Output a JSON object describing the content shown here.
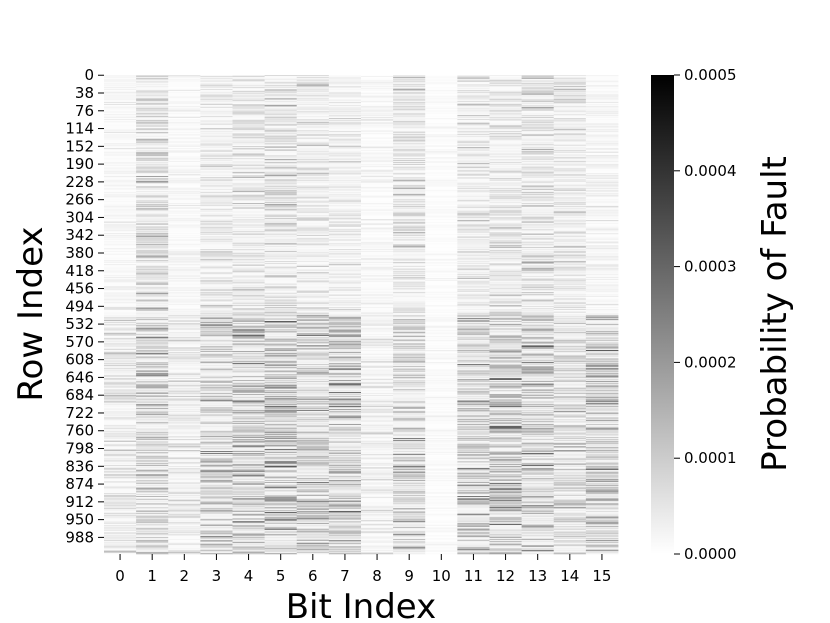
{
  "chart_data": {
    "type": "heatmap",
    "title": "",
    "xlabel": "Bit Index",
    "ylabel": "Row Index",
    "x_ticks": [
      "0",
      "1",
      "2",
      "3",
      "4",
      "5",
      "6",
      "7",
      "8",
      "9",
      "10",
      "11",
      "12",
      "13",
      "14",
      "15"
    ],
    "y_ticks": [
      "0",
      "38",
      "76",
      "114",
      "152",
      "190",
      "228",
      "266",
      "304",
      "342",
      "380",
      "418",
      "456",
      "494",
      "532",
      "570",
      "608",
      "646",
      "684",
      "722",
      "760",
      "798",
      "836",
      "874",
      "912",
      "950",
      "988"
    ],
    "rows": 1024,
    "columns": 16,
    "colormap": "Greys",
    "colorbar": {
      "label": "Probability of Fault",
      "ticks": [
        "0.0000",
        "0.0001",
        "0.0002",
        "0.0003",
        "0.0004",
        "0.0005"
      ],
      "range": [
        0,
        0.0005
      ]
    },
    "column_mean_fault_probability": {
      "rows_0_to_512": [
        2e-05,
        7e-05,
        1.8e-05,
        5e-05,
        5.5e-05,
        6.8e-05,
        5.2e-05,
        4e-05,
        1.8e-05,
        6e-05,
        1e-05,
        5e-05,
        5.2e-05,
        6.8e-05,
        5.2e-05,
        2.5e-05
      ],
      "rows_512_to_1024": [
        5e-05,
        9.5e-05,
        4.5e-05,
        0.0001,
        0.00011,
        0.00012,
        0.0001,
        0.000115,
        3.5e-05,
        9.5e-05,
        1.2e-05,
        0.0001,
        0.00011,
        0.00011,
        8e-05,
        0.00012
      ]
    },
    "colors": {
      "background": "#ffffff",
      "text": "#000000"
    }
  }
}
